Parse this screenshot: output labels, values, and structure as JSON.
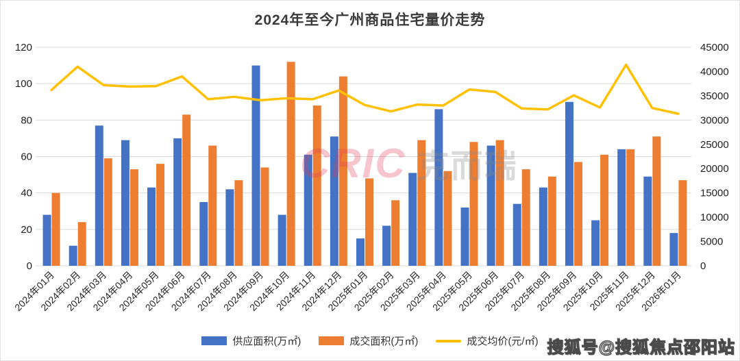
{
  "title": "2024年至今广州商品住宅量价走势",
  "watermark": {
    "brand_latin": "CRIC",
    "brand_cn": "克而瑞"
  },
  "footer_watermark": "搜狐号@搜狐焦点邵阳站",
  "colors": {
    "supply_bar": "#4472C4",
    "transaction_bar": "#ED7D31",
    "price_line": "#FFC000",
    "grid": "#d9d9d9",
    "tick_text": "#1f1f1f",
    "category_text": "#262626"
  },
  "legend": [
    {
      "label": "供应面积(万㎡)",
      "color": "#4472C4",
      "type": "bar"
    },
    {
      "label": "成交面积(万㎡)",
      "color": "#ED7D31",
      "type": "bar"
    },
    {
      "label": "成交均价(元/㎡)",
      "color": "#FFC000",
      "type": "line"
    }
  ],
  "chart_data": {
    "type": "bar",
    "subtype": "grouped-bars-with-line-overlay",
    "title": "2024年至今广州商品住宅量价走势",
    "categories": [
      "2024年01月",
      "2024年02月",
      "2024年03月",
      "2024年04月",
      "2024年05月",
      "2024年06月",
      "2024年07月",
      "2024年08月",
      "2024年09月",
      "2024年10月",
      "2024年11月",
      "2024年12月",
      "2025年01月",
      "2025年02月",
      "2025年03月",
      "2025年04月",
      "2025年05月",
      "2025年06月",
      "2025年07月",
      "2025年08月",
      "2025年09月",
      "2025年10月",
      "2025年11月",
      "2025年12月",
      "2026年01月"
    ],
    "series": [
      {
        "name": "供应面积(万㎡)",
        "type": "bar",
        "axis": "left",
        "color": "#4472C4",
        "values": [
          28,
          11,
          77,
          69,
          43,
          70,
          35,
          42,
          110,
          28,
          61,
          71,
          15,
          22,
          51,
          86,
          32,
          66,
          34,
          43,
          90,
          25,
          64,
          49,
          18
        ]
      },
      {
        "name": "成交面积(万㎡)",
        "type": "bar",
        "axis": "left",
        "color": "#ED7D31",
        "values": [
          40,
          24,
          59,
          53,
          56,
          83,
          66,
          47,
          54,
          112,
          88,
          104,
          48,
          36,
          69,
          52,
          68,
          69,
          53,
          49,
          57,
          61,
          64,
          71,
          47
        ]
      },
      {
        "name": "成交均价(元/㎡)",
        "type": "line",
        "axis": "right",
        "color": "#FFC000",
        "values": [
          36200,
          41000,
          37200,
          36900,
          37000,
          39000,
          34300,
          34800,
          34100,
          34500,
          34300,
          36100,
          33100,
          31800,
          33200,
          33000,
          36300,
          35800,
          32400,
          32200,
          35100,
          32600,
          41400,
          32500,
          31300
        ]
      }
    ],
    "left_axis": {
      "min": 0,
      "max": 120,
      "step": 20,
      "ticks": [
        0,
        20,
        40,
        60,
        80,
        100,
        120
      ]
    },
    "right_axis": {
      "min": 0,
      "max": 45000,
      "step": 5000,
      "ticks": [
        0,
        5000,
        10000,
        15000,
        20000,
        25000,
        30000,
        35000,
        40000,
        45000
      ]
    },
    "grid": true,
    "legend_position": "bottom",
    "xlabel": "",
    "ylabel_left": "",
    "ylabel_right": ""
  }
}
